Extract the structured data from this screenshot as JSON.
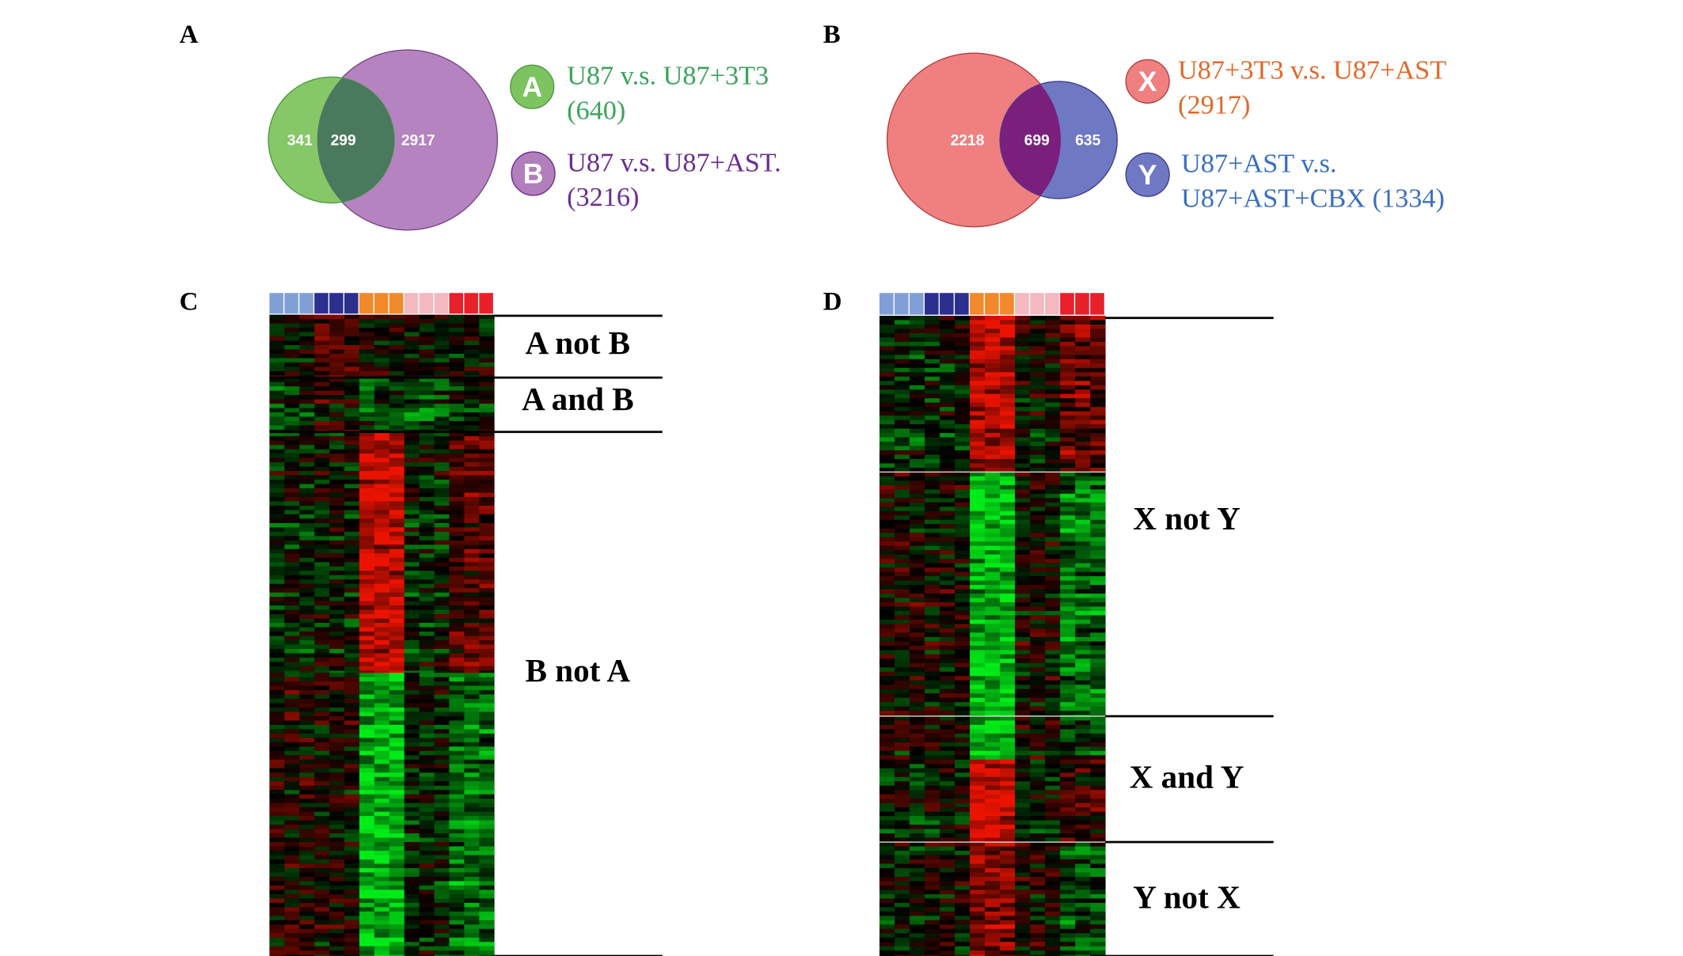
{
  "panels": [
    {
      "letter": "A",
      "venn": {
        "left": 341,
        "overlap": 299,
        "right": 2917
      },
      "legend": [
        {
          "badge": "A",
          "line1": "U87 v.s. U87+3T3",
          "line2": "(640)"
        },
        {
          "badge": "B",
          "line1": "U87 v.s. U87+AST.",
          "line2": "(3216)"
        }
      ]
    },
    {
      "letter": "B",
      "venn": {
        "left": 2218,
        "overlap": 699,
        "right": 635
      },
      "legend": [
        {
          "badge": "X",
          "line1": "U87+3T3 v.s. U87+AST",
          "line2": "(2917)"
        },
        {
          "badge": "Y",
          "line1": "U87+AST v.s.",
          "line2": "U87+AST+CBX (1334)"
        }
      ]
    },
    {
      "letter": "C",
      "sections": [
        "A not B",
        "A and B",
        "B not A"
      ]
    },
    {
      "letter": "D",
      "sections": [
        "X not Y",
        "X and Y",
        "Y not X"
      ]
    }
  ]
}
